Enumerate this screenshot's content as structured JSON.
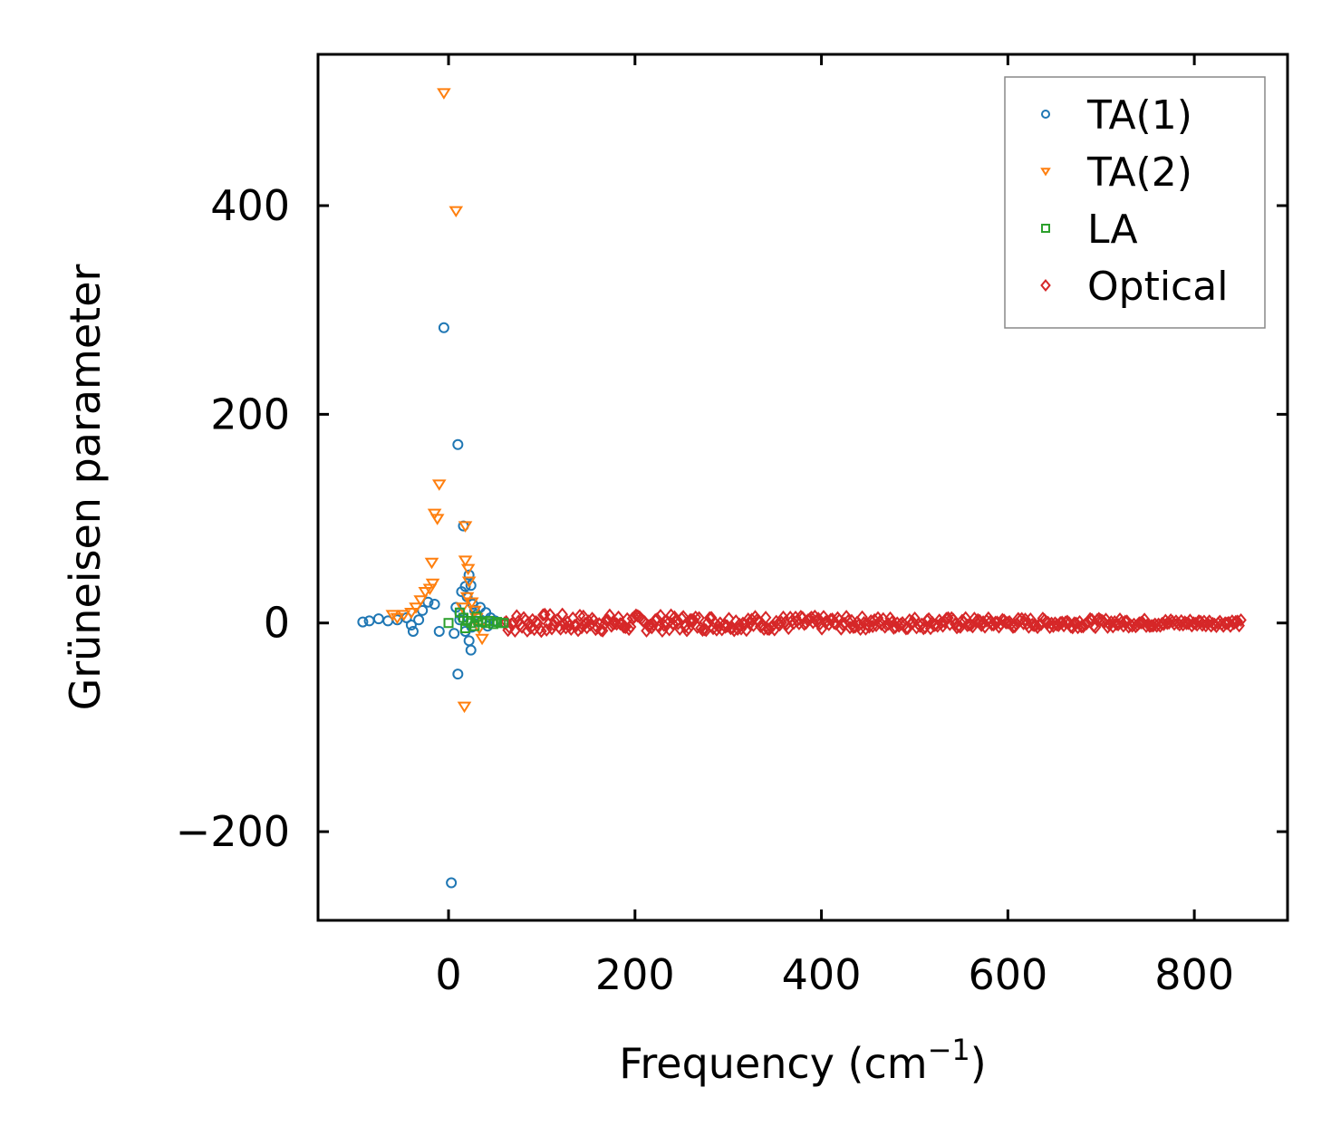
{
  "chart_data": {
    "type": "scatter",
    "title": "",
    "xlabel": "Frequency (cm",
    "xlabel_sup": "−1",
    "xlabel_suffix": ")",
    "ylabel": "Grüneisen parameter",
    "xlim": [
      -140,
      900
    ],
    "ylim": [
      -285,
      545
    ],
    "xticks": [
      0,
      200,
      400,
      600,
      800
    ],
    "xtick_labels": [
      "0",
      "200",
      "400",
      "600",
      "800"
    ],
    "yticks": [
      -200,
      0,
      200,
      400
    ],
    "ytick_labels": [
      "−200",
      "0",
      "200",
      "400"
    ],
    "grid": false,
    "legend": {
      "position": "top-right"
    },
    "series": [
      {
        "name": "TA(1)",
        "marker": "circle",
        "color": "#1f77b4",
        "points": [
          [
            -5,
            283
          ],
          [
            10,
            171
          ],
          [
            3,
            -249
          ],
          [
            10,
            -49
          ],
          [
            22,
            -17
          ],
          [
            24,
            -26
          ],
          [
            16,
            93
          ],
          [
            22,
            46
          ],
          [
            24,
            36
          ],
          [
            18,
            35
          ],
          [
            14,
            30
          ],
          [
            20,
            25
          ],
          [
            26,
            18
          ],
          [
            28,
            12
          ],
          [
            30,
            8
          ],
          [
            15,
            5
          ],
          [
            12,
            3
          ],
          [
            -10,
            -8
          ],
          [
            -38,
            -8
          ],
          [
            -28,
            12
          ],
          [
            -22,
            20
          ],
          [
            -15,
            18
          ],
          [
            -45,
            5
          ],
          [
            -55,
            3
          ],
          [
            -65,
            2
          ],
          [
            -75,
            4
          ],
          [
            -85,
            2
          ],
          [
            -92,
            1
          ],
          [
            6,
            -10
          ],
          [
            34,
            15
          ],
          [
            40,
            10
          ],
          [
            45,
            5
          ],
          [
            50,
            2
          ],
          [
            18,
            -8
          ],
          [
            25,
            -4
          ],
          [
            36,
            2
          ],
          [
            42,
            -3
          ],
          [
            -32,
            3
          ],
          [
            -40,
            -2
          ],
          [
            8,
            15
          ],
          [
            12,
            10
          ]
        ]
      },
      {
        "name": "TA(2)",
        "marker": "triangle-down",
        "color": "#ff7f0e",
        "points": [
          [
            -5,
            508
          ],
          [
            8,
            395
          ],
          [
            -10,
            133
          ],
          [
            -15,
            105
          ],
          [
            -12,
            100
          ],
          [
            18,
            93
          ],
          [
            -18,
            58
          ],
          [
            18,
            60
          ],
          [
            21,
            52
          ],
          [
            17,
            -80
          ],
          [
            -17,
            38
          ],
          [
            -20,
            33
          ],
          [
            -25,
            30
          ],
          [
            -30,
            22
          ],
          [
            -35,
            15
          ],
          [
            -40,
            10
          ],
          [
            -48,
            8
          ],
          [
            -55,
            5
          ],
          [
            -60,
            8
          ],
          [
            20,
            25
          ],
          [
            25,
            20
          ],
          [
            28,
            12
          ],
          [
            30,
            5
          ],
          [
            33,
            -5
          ],
          [
            36,
            -15
          ],
          [
            22,
            40
          ],
          [
            15,
            15
          ]
        ]
      },
      {
        "name": "LA",
        "marker": "square",
        "color": "#2ca02c",
        "points": [
          [
            0,
            0
          ],
          [
            12,
            10
          ],
          [
            16,
            5
          ],
          [
            20,
            2
          ],
          [
            24,
            0
          ],
          [
            28,
            -3
          ],
          [
            32,
            2
          ],
          [
            36,
            1
          ],
          [
            40,
            0
          ],
          [
            44,
            2
          ],
          [
            48,
            -1
          ],
          [
            52,
            1
          ],
          [
            56,
            0
          ],
          [
            59,
            0
          ],
          [
            18,
            -5
          ],
          [
            30,
            6
          ]
        ]
      },
      {
        "name": "Optical",
        "marker": "diamond",
        "color": "#d62728",
        "x_range": [
          60,
          850
        ],
        "y_center": 0,
        "spread_low_freq": 9,
        "spread_high_freq": 3
      }
    ]
  }
}
